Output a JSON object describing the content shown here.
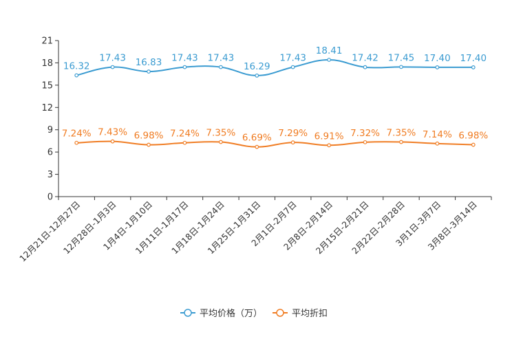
{
  "chart_data": {
    "type": "line",
    "title": "",
    "xlabel": "",
    "ylabel": "",
    "ylim": [
      0,
      21
    ],
    "yticks": [
      0,
      3,
      6,
      9,
      12,
      15,
      18,
      21
    ],
    "categories": [
      "12月21日-12月27日",
      "12月28日-1月3日",
      "1月4日-1月10日",
      "1月11日-1月17日",
      "1月18日-1月24日",
      "1月25日-1月31日",
      "2月1日-2月7日",
      "2月8日-2月14日",
      "2月15日-2月21日",
      "2月22日-2月28日",
      "3月1日-3月7日",
      "3月8日-3月14日"
    ],
    "legend_position": "bottom",
    "series": [
      {
        "name": "平均价格（万）",
        "color": "#3a9bd1",
        "values": [
          16.32,
          17.43,
          16.83,
          17.43,
          17.43,
          16.29,
          17.43,
          18.41,
          17.42,
          17.45,
          17.4,
          17.4
        ],
        "labels": [
          "16.32",
          "17.43",
          "16.83",
          "17.43",
          "17.43",
          "16.29",
          "17.43",
          "18.41",
          "17.42",
          "17.45",
          "17.40",
          "17.40"
        ]
      },
      {
        "name": "平均折扣",
        "color": "#f07c22",
        "values": [
          7.24,
          7.43,
          6.98,
          7.24,
          7.35,
          6.69,
          7.29,
          6.91,
          7.32,
          7.35,
          7.14,
          6.98
        ],
        "labels": [
          "7.24%",
          "7.43%",
          "6.98%",
          "7.24%",
          "7.35%",
          "6.69%",
          "7.29%",
          "6.91%",
          "7.32%",
          "7.35%",
          "7.14%",
          "6.98%"
        ]
      }
    ]
  }
}
